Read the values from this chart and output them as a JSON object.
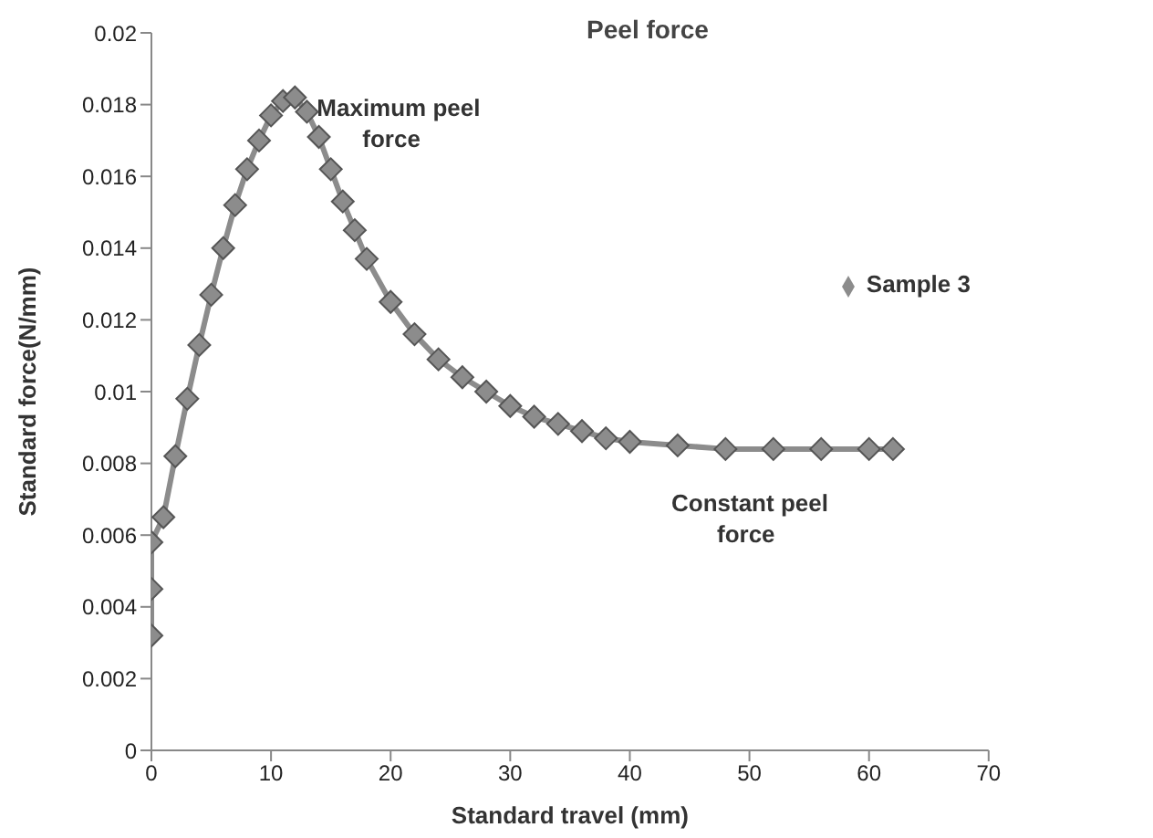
{
  "chart_data": {
    "type": "line",
    "title": "Peel force",
    "xlabel": "Standard travel (mm)",
    "ylabel": "Standard force(N/mm)",
    "xlim": [
      0,
      70
    ],
    "xticks": [
      0,
      10,
      20,
      30,
      40,
      50,
      60,
      70
    ],
    "ylim": [
      0,
      0.02
    ],
    "yticks": [
      0,
      0.002,
      0.004,
      0.006,
      0.008,
      0.01,
      0.012,
      0.014,
      0.016,
      0.018,
      0.02
    ],
    "grid": false,
    "legend": "right",
    "marker": "diamond",
    "line_style": "solid",
    "annotations": [
      {
        "text": "Maximum peel force",
        "x": 12,
        "y": 0.0182
      },
      {
        "text": "Constant peel force",
        "x": 45,
        "y": 0.0085
      }
    ],
    "series": [
      {
        "name": "Sample 3",
        "color": "#8c8c8c",
        "x": [
          0,
          0,
          0,
          1,
          2,
          3,
          4,
          5,
          6,
          7,
          8,
          9,
          10,
          11,
          12,
          13,
          14,
          15,
          16,
          17,
          18,
          20,
          22,
          24,
          26,
          28,
          30,
          32,
          34,
          36,
          38,
          40,
          44,
          48,
          52,
          56,
          60,
          62
        ],
        "values": [
          0.0032,
          0.0045,
          0.0058,
          0.0065,
          0.0082,
          0.0098,
          0.0113,
          0.0127,
          0.014,
          0.0152,
          0.0162,
          0.017,
          0.0177,
          0.0181,
          0.0182,
          0.0178,
          0.0171,
          0.0162,
          0.0153,
          0.0145,
          0.0137,
          0.0125,
          0.0116,
          0.0109,
          0.0104,
          0.01,
          0.0096,
          0.0093,
          0.0091,
          0.0089,
          0.0087,
          0.0086,
          0.0085,
          0.0084,
          0.0084,
          0.0084,
          0.0084,
          0.0084
        ]
      }
    ]
  }
}
